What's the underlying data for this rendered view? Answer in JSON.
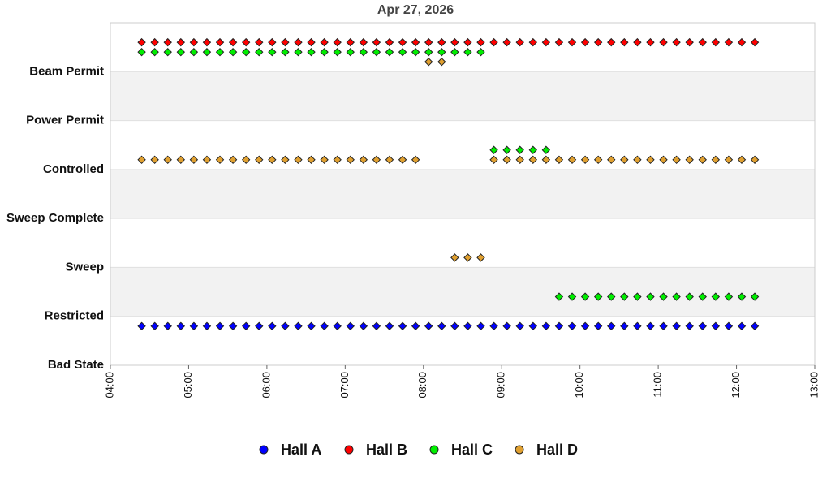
{
  "chart_data": {
    "type": "scatter",
    "title": "Apr 27, 2026",
    "x": [
      "04:24",
      "04:34",
      "04:44",
      "04:54",
      "05:04",
      "05:14",
      "05:24",
      "05:34",
      "05:44",
      "05:54",
      "06:04",
      "06:14",
      "06:24",
      "06:34",
      "06:44",
      "06:54",
      "07:04",
      "07:14",
      "07:24",
      "07:34",
      "07:44",
      "07:54",
      "08:04",
      "08:14",
      "08:24",
      "08:34",
      "08:44",
      "08:54",
      "09:04",
      "09:14",
      "09:24",
      "09:34",
      "09:44",
      "09:54",
      "10:04",
      "10:14",
      "10:24",
      "10:34",
      "10:44",
      "10:54",
      "11:04",
      "11:14",
      "11:24",
      "11:34",
      "11:44",
      "11:54",
      "12:04",
      "12:14"
    ],
    "series": [
      {
        "name": "Hall A",
        "color": "#0000ff",
        "values": [
          0.8,
          0.8,
          0.8,
          0.8,
          0.8,
          0.8,
          0.8,
          0.8,
          0.8,
          0.8,
          0.8,
          0.8,
          0.8,
          0.8,
          0.8,
          0.8,
          0.8,
          0.8,
          0.8,
          0.8,
          0.8,
          0.8,
          0.8,
          0.8,
          0.8,
          0.8,
          0.8,
          0.8,
          0.8,
          0.8,
          0.8,
          0.8,
          0.8,
          0.8,
          0.8,
          0.8,
          0.8,
          0.8,
          0.8,
          0.8,
          0.8,
          0.8,
          0.8,
          0.8,
          0.8,
          0.8,
          0.8,
          0.8
        ]
      },
      {
        "name": "Hall B",
        "color": "#ff0000",
        "values": [
          6.6,
          6.6,
          6.6,
          6.6,
          6.6,
          6.6,
          6.6,
          6.6,
          6.6,
          6.6,
          6.6,
          6.6,
          6.6,
          6.6,
          6.6,
          6.6,
          6.6,
          6.6,
          6.6,
          6.6,
          6.6,
          6.6,
          6.6,
          6.6,
          6.6,
          6.6,
          6.6,
          6.6,
          6.6,
          6.6,
          6.6,
          6.6,
          6.6,
          6.6,
          6.6,
          6.6,
          6.6,
          6.6,
          6.6,
          6.6,
          6.6,
          6.6,
          6.6,
          6.6,
          6.6,
          6.6,
          6.6,
          6.6
        ]
      },
      {
        "name": "Hall C",
        "color": "#00ee00",
        "values": [
          6.4,
          6.4,
          6.4,
          6.4,
          6.4,
          6.4,
          6.4,
          6.4,
          6.4,
          6.4,
          6.4,
          6.4,
          6.4,
          6.4,
          6.4,
          6.4,
          6.4,
          6.4,
          6.4,
          6.4,
          6.4,
          6.4,
          6.4,
          6.4,
          6.4,
          6.4,
          6.4,
          4.4,
          4.4,
          4.4,
          4.4,
          4.4,
          1.4,
          1.4,
          1.4,
          1.4,
          1.4,
          1.4,
          1.4,
          1.4,
          1.4,
          1.4,
          1.4,
          1.4,
          1.4,
          1.4,
          1.4,
          1.4
        ]
      },
      {
        "name": "Hall D",
        "color": "#e0a030",
        "values": [
          4.2,
          4.2,
          4.2,
          4.2,
          4.2,
          4.2,
          4.2,
          4.2,
          4.2,
          4.2,
          4.2,
          4.2,
          4.2,
          4.2,
          4.2,
          4.2,
          4.2,
          4.2,
          4.2,
          4.2,
          4.2,
          4.2,
          6.2,
          6.2,
          2.2,
          2.2,
          2.2,
          4.2,
          4.2,
          4.2,
          4.2,
          4.2,
          4.2,
          4.2,
          4.2,
          4.2,
          4.2,
          4.2,
          4.2,
          4.2,
          4.2,
          4.2,
          4.2,
          4.2,
          4.2,
          4.2,
          4.2,
          4.2
        ]
      }
    ],
    "xlim": [
      "04:00",
      "13:00"
    ],
    "xticks": [
      "04:00",
      "05:00",
      "06:00",
      "07:00",
      "08:00",
      "09:00",
      "10:00",
      "11:00",
      "12:00",
      "13:00"
    ],
    "ylim": [
      0,
      7
    ],
    "yticks": [
      {
        "value": 0,
        "label": "Bad State"
      },
      {
        "value": 1,
        "label": "Restricted"
      },
      {
        "value": 2,
        "label": "Sweep"
      },
      {
        "value": 3,
        "label": "Sweep Complete"
      },
      {
        "value": 4,
        "label": "Controlled"
      },
      {
        "value": 5,
        "label": "Power Permit"
      },
      {
        "value": 6,
        "label": "Beam Permit"
      }
    ],
    "legend": "bottom"
  }
}
